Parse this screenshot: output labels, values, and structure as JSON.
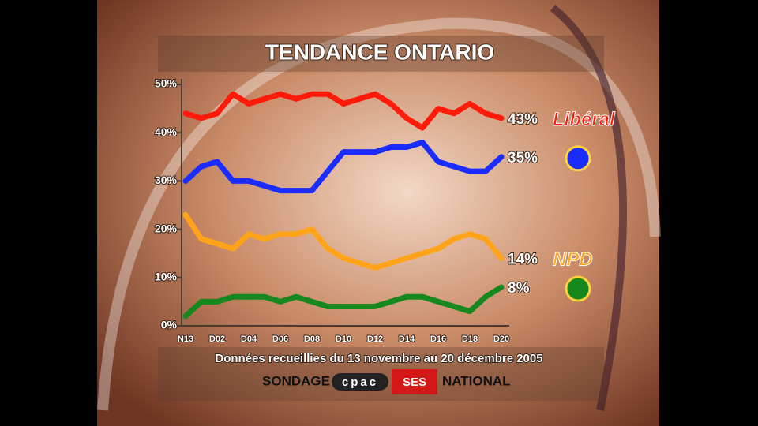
{
  "chart_data": {
    "type": "line",
    "title": "TENDANCE ONTARIO",
    "subtitle": "Données recueillies du 13 novembre au 20 décembre 2005",
    "footer": {
      "left": "SONDAGE",
      "logo": "cpac",
      "badge": "SES",
      "right": "NATIONAL"
    },
    "categories": [
      "N13",
      null,
      "D02",
      null,
      "D04",
      null,
      "D06",
      null,
      "D08",
      null,
      "D10",
      null,
      "D12",
      null,
      "D14",
      null,
      "D16",
      null,
      "D18",
      null,
      "D20"
    ],
    "ylim": [
      0,
      50
    ],
    "yticks": [
      {
        "value": 0,
        "label": "0%"
      },
      {
        "value": 10,
        "label": "10%"
      },
      {
        "value": 20,
        "label": "20%"
      },
      {
        "value": 30,
        "label": "30%"
      },
      {
        "value": 40,
        "label": "40%"
      },
      {
        "value": 50,
        "label": "50%"
      }
    ],
    "series": [
      {
        "name": "Libéral",
        "color": "#ff1a0a",
        "values": [
          44,
          43,
          44,
          48,
          46,
          47,
          48,
          47,
          48,
          48,
          46,
          47,
          48,
          46,
          43,
          41,
          45,
          44,
          46,
          44,
          43
        ],
        "value_labels": [
          null,
          null,
          null,
          null,
          null,
          null,
          null,
          null,
          null,
          null,
          null,
          null,
          null,
          null,
          null,
          null,
          null,
          null,
          null,
          null,
          "43%"
        ]
      },
      {
        "color": "#1a2cff",
        "values": [
          30,
          33,
          34,
          30,
          30,
          29,
          28,
          28,
          28,
          32,
          36,
          36,
          36,
          37,
          37,
          38,
          34,
          33,
          32,
          32,
          35
        ],
        "value_labels": [
          null,
          null,
          null,
          null,
          null,
          null,
          null,
          null,
          null,
          null,
          null,
          null,
          null,
          null,
          null,
          null,
          null,
          null,
          null,
          null,
          "35%"
        ]
      },
      {
        "name": "NPD",
        "color": "#ffa41a",
        "values": [
          23,
          18,
          17,
          16,
          19,
          18,
          19,
          19,
          20,
          16,
          14,
          13,
          12,
          13,
          14,
          15,
          16,
          18,
          19,
          18,
          14
        ],
        "value_labels": [
          null,
          null,
          null,
          null,
          null,
          null,
          null,
          null,
          null,
          null,
          null,
          null,
          null,
          null,
          null,
          null,
          null,
          null,
          null,
          null,
          "14%"
        ]
      },
      {
        "color": "#16881e",
        "values": [
          2,
          5,
          5,
          6,
          6,
          6,
          5,
          6,
          5,
          4,
          4,
          4,
          4,
          5,
          6,
          6,
          5,
          4,
          3,
          6,
          8
        ],
        "value_labels": [
          null,
          null,
          null,
          null,
          null,
          null,
          null,
          null,
          null,
          null,
          null,
          null,
          null,
          null,
          null,
          null,
          null,
          null,
          null,
          null,
          "8%"
        ]
      }
    ]
  }
}
